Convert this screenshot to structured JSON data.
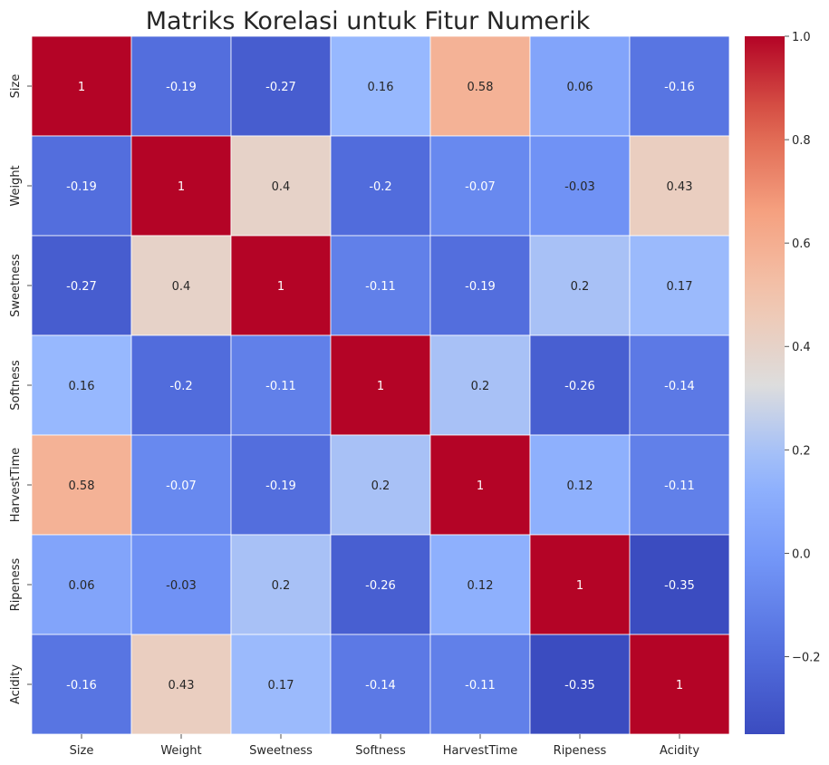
{
  "chart_data": {
    "type": "heatmap",
    "title": "Matriks Korelasi untuk Fitur Numerik",
    "x_labels": [
      "Size",
      "Weight",
      "Sweetness",
      "Softness",
      "HarvestTime",
      "Ripeness",
      "Acidity"
    ],
    "y_labels": [
      "Size",
      "Weight",
      "Sweetness",
      "Softness",
      "HarvestTime",
      "Ripeness",
      "Acidity"
    ],
    "values": [
      [
        1,
        -0.19,
        -0.27,
        0.16,
        0.58,
        0.06,
        -0.16
      ],
      [
        -0.19,
        1,
        0.4,
        -0.2,
        -0.07,
        -0.03,
        0.43
      ],
      [
        -0.27,
        0.4,
        1,
        -0.11,
        -0.19,
        0.2,
        0.17
      ],
      [
        0.16,
        -0.2,
        -0.11,
        1,
        0.2,
        -0.26,
        -0.14
      ],
      [
        0.58,
        -0.07,
        -0.19,
        0.2,
        1,
        0.12,
        -0.11
      ],
      [
        0.06,
        -0.03,
        0.2,
        -0.26,
        0.12,
        1,
        -0.35
      ],
      [
        -0.16,
        0.43,
        0.17,
        -0.14,
        -0.11,
        -0.35,
        1
      ]
    ],
    "colormap": "coolwarm",
    "vmin": -0.35,
    "vmax": 1.0,
    "annotations": true,
    "colorbar": {
      "ticks": [
        -0.2,
        0.0,
        0.2,
        0.4,
        0.6,
        0.8,
        1.0
      ],
      "tick_labels": [
        "−0.2",
        "0.0",
        "0.2",
        "0.4",
        "0.6",
        "0.8",
        "1.0"
      ]
    },
    "grid_line_color": "#ffffff"
  }
}
